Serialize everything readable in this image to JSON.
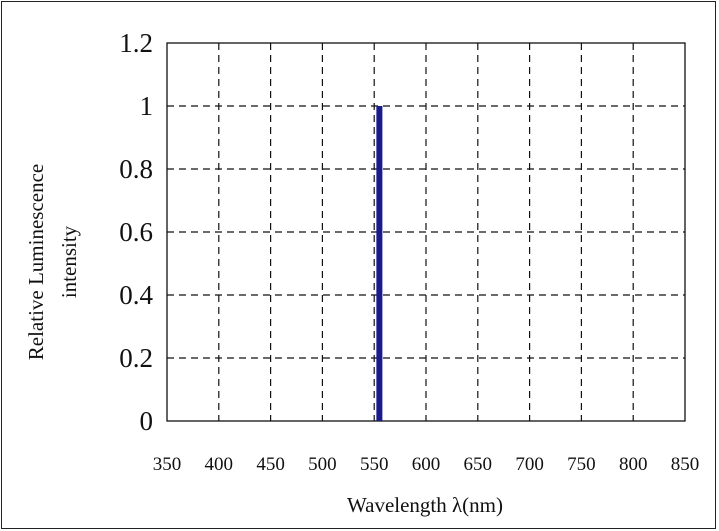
{
  "chart_data": {
    "type": "line",
    "xlabel": "Wavelength λ(nm)",
    "ylabel_lines": [
      "Relative Luminescence",
      "intensity"
    ],
    "xlim": [
      350,
      850
    ],
    "ylim": [
      0,
      1.2
    ],
    "x_ticks": [
      "350",
      "400",
      "450",
      "500",
      "550",
      "600",
      "650",
      "700",
      "750",
      "800",
      "850"
    ],
    "y_ticks": [
      "0",
      "0.2",
      "0.4",
      "0.6",
      "0.8",
      "1",
      "1.2"
    ],
    "grid": "dashed",
    "series": [
      {
        "x": [
          555,
          555
        ],
        "y": [
          0,
          1
        ],
        "color": "#1a1a8c"
      }
    ]
  }
}
